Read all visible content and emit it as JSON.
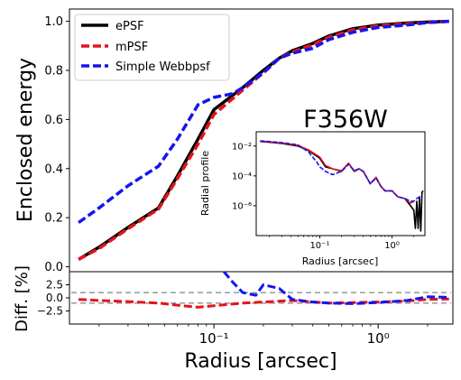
{
  "figure": {
    "annotation": "F356W"
  },
  "chart_data": [
    {
      "id": "main",
      "type": "line",
      "xscale": "log",
      "xlim": [
        0.0132,
        2.85
      ],
      "ylim": [
        -0.02,
        1.05
      ],
      "xlabel": "",
      "ylabel": "Enclosed energy",
      "yticks": [
        "0.0",
        "0.2",
        "0.4",
        "0.6",
        "0.8",
        "1.0"
      ],
      "ytick_values": [
        0.0,
        0.2,
        0.4,
        0.6,
        0.8,
        1.0
      ],
      "grid": false,
      "legend": {
        "placement": "top-left",
        "entries": [
          "ePSF",
          "mPSF",
          "Simple Webbpsf"
        ]
      },
      "series": [
        {
          "name": "ePSF",
          "color": "#000000",
          "style": "solid",
          "x": [
            0.015,
            0.02,
            0.03,
            0.046,
            0.06,
            0.08,
            0.1,
            0.15,
            0.2,
            0.25,
            0.3,
            0.4,
            0.5,
            0.7,
            1.0,
            1.5,
            2.0,
            2.7
          ],
          "y": [
            0.03,
            0.08,
            0.16,
            0.24,
            0.37,
            0.52,
            0.64,
            0.73,
            0.8,
            0.85,
            0.88,
            0.91,
            0.94,
            0.97,
            0.985,
            0.993,
            0.997,
            1.0
          ]
        },
        {
          "name": "mPSF",
          "color": "#e8121b",
          "style": "dashed",
          "x": [
            0.015,
            0.02,
            0.03,
            0.046,
            0.06,
            0.08,
            0.1,
            0.15,
            0.2,
            0.25,
            0.3,
            0.4,
            0.5,
            0.7,
            1.0,
            1.5,
            2.0,
            2.7
          ],
          "y": [
            0.03,
            0.075,
            0.155,
            0.235,
            0.36,
            0.5,
            0.62,
            0.72,
            0.79,
            0.85,
            0.875,
            0.905,
            0.935,
            0.965,
            0.982,
            0.99,
            0.995,
            1.0
          ]
        },
        {
          "name": "Simple Webbpsf",
          "color": "#1515ef",
          "style": "dashed",
          "x": [
            0.015,
            0.02,
            0.03,
            0.046,
            0.06,
            0.08,
            0.1,
            0.13,
            0.15,
            0.2,
            0.25,
            0.3,
            0.4,
            0.5,
            0.7,
            1.0,
            1.5,
            2.0,
            2.7
          ],
          "y": [
            0.18,
            0.24,
            0.33,
            0.41,
            0.52,
            0.66,
            0.69,
            0.705,
            0.73,
            0.79,
            0.85,
            0.87,
            0.89,
            0.925,
            0.955,
            0.975,
            0.985,
            0.995,
            1.0
          ]
        }
      ]
    },
    {
      "id": "diff",
      "type": "line",
      "xscale": "log",
      "xlim": [
        0.0132,
        2.85
      ],
      "ylim": [
        -5.0,
        5.0
      ],
      "xlabel": "Radius [arcsec]",
      "ylabel": "Diff. [%]",
      "yticks": [
        "2.5",
        "0.0",
        "−2.5"
      ],
      "ytick_values": [
        2.5,
        0.0,
        -2.5
      ],
      "xticks": [
        "10⁻¹",
        "10⁰"
      ],
      "xtick_values": [
        0.1,
        1.0
      ],
      "reference_lines": [
        1.0,
        -1.0
      ],
      "series": [
        {
          "name": "",
          "color": "#e8121b",
          "style": "dashed",
          "x": [
            0.015,
            0.02,
            0.03,
            0.046,
            0.06,
            0.08,
            0.1,
            0.15,
            0.2,
            0.3,
            0.5,
            0.7,
            1.0,
            1.5,
            2.0,
            2.7
          ],
          "y": [
            -0.3,
            -0.5,
            -0.7,
            -1.0,
            -1.4,
            -1.8,
            -1.5,
            -1.0,
            -0.8,
            -0.5,
            -1.0,
            -0.9,
            -0.8,
            -0.6,
            -0.3,
            -0.2
          ]
        },
        {
          "name": "",
          "color": "#1515ef",
          "style": "dashed",
          "x": [
            0.115,
            0.13,
            0.15,
            0.18,
            0.2,
            0.25,
            0.3,
            0.4,
            0.5,
            0.7,
            1.0,
            1.5,
            2.0,
            2.7
          ],
          "y": [
            5.0,
            3.0,
            1.0,
            0.5,
            2.5,
            1.8,
            -0.3,
            -0.8,
            -1.0,
            -1.1,
            -0.9,
            -0.5,
            0.2,
            0.1
          ]
        }
      ]
    },
    {
      "id": "inset",
      "type": "line",
      "xscale": "log",
      "yscale": "log",
      "xlim": [
        0.0132,
        2.85
      ],
      "ylim": [
        1e-08,
        0.09
      ],
      "xlabel": "Radius [arcsec]",
      "ylabel": "Radial profile",
      "xticks": [
        "10⁻¹",
        "10⁰"
      ],
      "xtick_values": [
        0.1,
        1.0
      ],
      "yticks": [
        "10⁻²",
        "10⁻⁴",
        "10⁻⁶"
      ],
      "ytick_values": [
        0.01,
        0.0001,
        1e-06
      ],
      "series": [
        {
          "name": "",
          "color": "#000000",
          "style": "solid",
          "x": [
            0.015,
            0.02,
            0.03,
            0.05,
            0.07,
            0.1,
            0.12,
            0.15,
            0.2,
            0.25,
            0.3,
            0.35,
            0.4,
            0.5,
            0.6,
            0.7,
            0.8,
            1.0,
            1.2,
            1.5,
            1.8,
            2.0,
            2.1,
            2.2,
            2.3,
            2.4,
            2.5,
            2.6,
            2.7
          ],
          "y": [
            0.02,
            0.018,
            0.015,
            0.01,
            0.005,
            0.0015,
            0.0004,
            0.0003,
            0.0002,
            0.0007,
            0.0002,
            0.0003,
            0.0002,
            3e-05,
            8e-05,
            2e-05,
            1e-05,
            1e-05,
            4e-06,
            3e-06,
            1e-06,
            5e-07,
            3e-08,
            2e-06,
            3e-08,
            4e-06,
            2e-08,
            8e-06,
            1e-05
          ]
        },
        {
          "name": "",
          "color": "#e8121b",
          "style": "solid",
          "x": [
            0.015,
            0.02,
            0.03,
            0.05,
            0.07,
            0.1,
            0.12,
            0.15,
            0.2,
            0.25,
            0.3,
            0.35,
            0.4,
            0.5,
            0.6,
            0.7,
            0.8,
            1.0,
            1.2,
            1.5,
            1.8,
            2.0
          ],
          "y": [
            0.021,
            0.019,
            0.016,
            0.011,
            0.0055,
            0.0018,
            0.0005,
            0.0003,
            0.00022,
            0.0007,
            0.00022,
            0.0003,
            0.0002,
            3e-05,
            8e-05,
            2e-05,
            1e-05,
            1e-05,
            4e-06,
            3e-06,
            1.5e-06,
            2e-06
          ]
        },
        {
          "name": "",
          "color": "#1515ef",
          "style": "dashed",
          "x": [
            0.015,
            0.02,
            0.03,
            0.05,
            0.07,
            0.09,
            0.1,
            0.12,
            0.15,
            0.2,
            0.25,
            0.3,
            0.35,
            0.4,
            0.5,
            0.6,
            0.7,
            0.8,
            1.0,
            1.2,
            1.5,
            1.8,
            2.0,
            2.2,
            2.4,
            2.6
          ],
          "y": [
            0.022,
            0.02,
            0.017,
            0.012,
            0.004,
            0.0009,
            0.0004,
            0.0002,
            0.00012,
            0.0002,
            0.0006,
            0.00022,
            0.0003,
            0.0002,
            3e-05,
            7e-05,
            2e-05,
            1e-05,
            1e-05,
            4e-06,
            3e-06,
            2e-06,
            2e-06,
            3e-06,
            4e-06,
            3e-06
          ]
        }
      ]
    }
  ]
}
